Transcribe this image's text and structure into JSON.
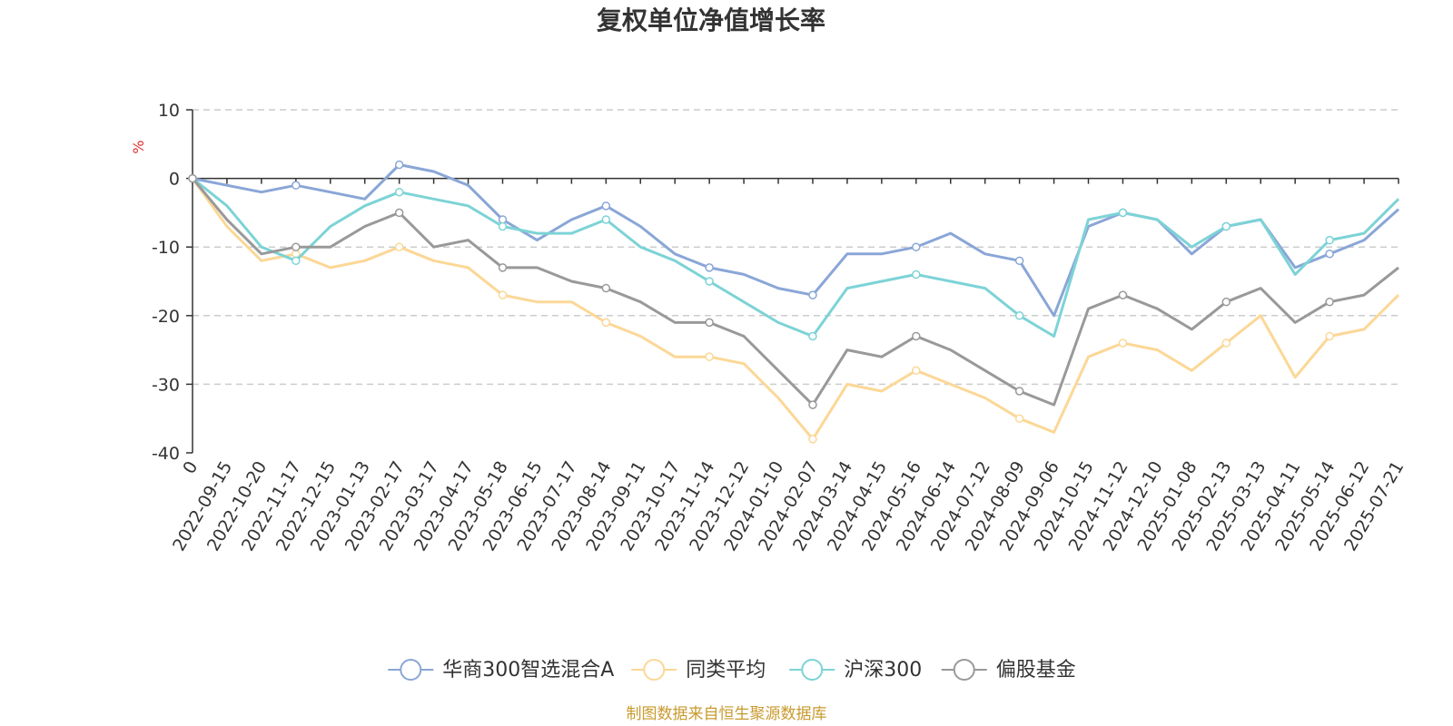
{
  "chart_data": {
    "type": "line",
    "title": "复权单位净值增长率",
    "ylabel": "%",
    "ylim": [
      -40,
      10
    ],
    "yticks": [
      "10",
      "0",
      "-10",
      "-20",
      "-30",
      "-40"
    ],
    "grid": true,
    "legend_position": "bottom",
    "x": [
      "0",
      "2022-09-15",
      "2022-10-20",
      "2022-11-17",
      "2022-12-15",
      "2023-01-13",
      "2023-02-17",
      "2023-03-17",
      "2023-04-17",
      "2023-05-18",
      "2023-06-15",
      "2023-07-17",
      "2023-08-14",
      "2023-09-11",
      "2023-10-17",
      "2023-11-14",
      "2023-12-12",
      "2024-01-10",
      "2024-02-07",
      "2024-03-14",
      "2024-04-15",
      "2024-05-16",
      "2024-06-14",
      "2024-07-12",
      "2024-08-09",
      "2024-09-06",
      "2024-10-15",
      "2024-11-12",
      "2024-12-10",
      "2025-01-08",
      "2025-02-13",
      "2025-03-13",
      "2025-04-11",
      "2025-05-14",
      "2025-06-12",
      "2025-07-21"
    ],
    "series": [
      {
        "name": "华商300智选混合A",
        "color": "#8aa6d7",
        "values": [
          0,
          -1,
          -2,
          -1,
          -2,
          -3,
          2,
          1,
          -1,
          -6,
          -9,
          -6,
          -4,
          -7,
          -11,
          -13,
          -14,
          -16,
          -17,
          -11,
          -11,
          -10,
          -8,
          -11,
          -12,
          -20,
          -7,
          -5,
          -6,
          -11,
          -7,
          -6,
          -13,
          -11,
          -9,
          -4.5
        ]
      },
      {
        "name": "同类平均",
        "color": "#fcd796",
        "values": [
          0,
          -7,
          -12,
          -11,
          -13,
          -12,
          -10,
          -12,
          -13,
          -17,
          -18,
          -18,
          -21,
          -23,
          -26,
          -26,
          -27,
          -32,
          -38,
          -30,
          -31,
          -28,
          -30,
          -32,
          -35,
          -37,
          -26,
          -24,
          -25,
          -28,
          -24,
          -20,
          -29,
          -23,
          -22,
          -17
        ]
      },
      {
        "name": "沪深300",
        "color": "#7dd3d6",
        "values": [
          0,
          -4,
          -10,
          -12,
          -7,
          -4,
          -2,
          -3,
          -4,
          -7,
          -8,
          -8,
          -6,
          -10,
          -12,
          -15,
          -18,
          -21,
          -23,
          -16,
          -15,
          -14,
          -15,
          -16,
          -20,
          -23,
          -6,
          -5,
          -6,
          -10,
          -7,
          -6,
          -14,
          -9,
          -8,
          -3
        ]
      },
      {
        "name": "偏股基金",
        "color": "#999999",
        "values": [
          0,
          -6,
          -11,
          -10,
          -10,
          -7,
          -5,
          -10,
          -9,
          -13,
          -13,
          -15,
          -16,
          -18,
          -21,
          -21,
          -23,
          -28,
          -33,
          -25,
          -26,
          -23,
          -25,
          -28,
          -31,
          -33,
          -19,
          -17,
          -19,
          -22,
          -18,
          -16,
          -21,
          -18,
          -17,
          -13
        ]
      }
    ]
  },
  "source_note": "制图数据来自恒生聚源数据库",
  "colors": {
    "title": "#333333",
    "unit": "#e03131",
    "source": "#c99a2e",
    "grid": "#cccccc",
    "axis": "#333333"
  }
}
